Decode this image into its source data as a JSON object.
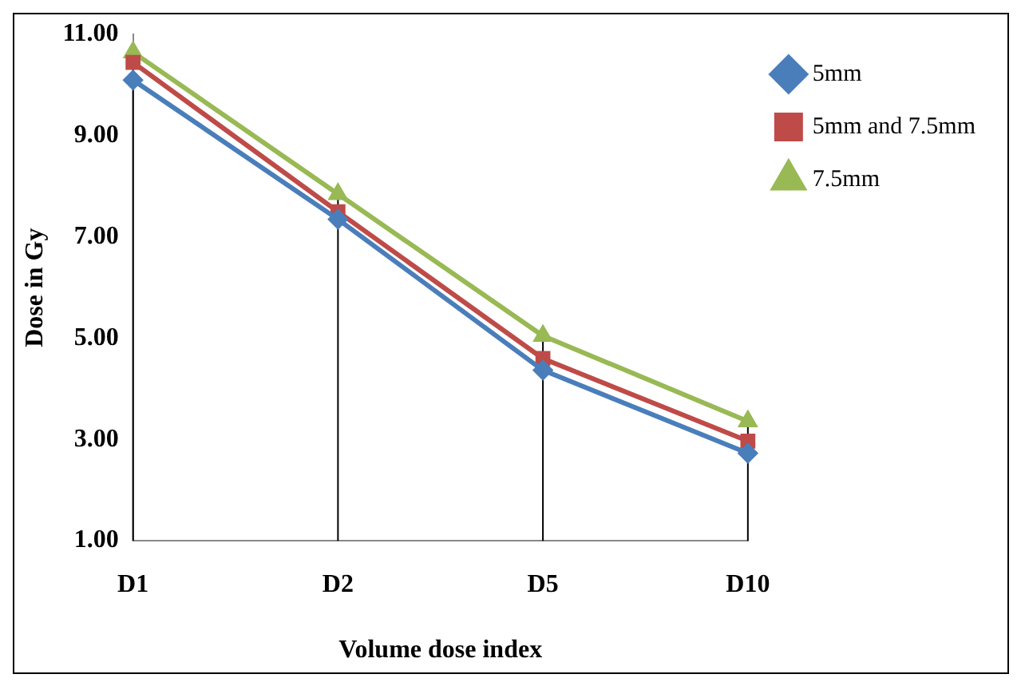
{
  "chart_data": {
    "type": "line",
    "xlabel": "Volume dose index",
    "ylabel": "Dose in Gy",
    "categories": [
      "D1",
      "D2",
      "D5",
      "D10"
    ],
    "series": [
      {
        "name": "5mm",
        "color": "#4a7ebb",
        "marker": "diamond",
        "values": [
          10.1,
          7.35,
          4.37,
          2.73
        ]
      },
      {
        "name": "5mm and 7.5mm",
        "color": "#be4b48",
        "marker": "square",
        "values": [
          10.45,
          7.5,
          4.6,
          2.97
        ]
      },
      {
        "name": "7.5mm",
        "color": "#98b954",
        "marker": "triangle",
        "values": [
          10.65,
          7.85,
          5.05,
          3.36
        ]
      }
    ],
    "ylim": [
      1,
      11
    ],
    "yticks": [
      {
        "value": 1,
        "label": "1.00"
      },
      {
        "value": 3,
        "label": "3.00"
      },
      {
        "value": 5,
        "label": "5.00"
      },
      {
        "value": 7,
        "label": "7.00"
      },
      {
        "value": 9,
        "label": "9.00"
      },
      {
        "value": 11,
        "label": "11.00"
      }
    ],
    "ref_lines": [
      {
        "axis": "x",
        "value": "D1",
        "color": "#000000"
      },
      {
        "axis": "x",
        "value": "D2",
        "color": "#000000"
      },
      {
        "axis": "x",
        "value": "D5",
        "color": "#000000"
      },
      {
        "axis": "x",
        "value": "D10",
        "color": "#000000"
      }
    ],
    "grid": false,
    "legend": "top right"
  }
}
